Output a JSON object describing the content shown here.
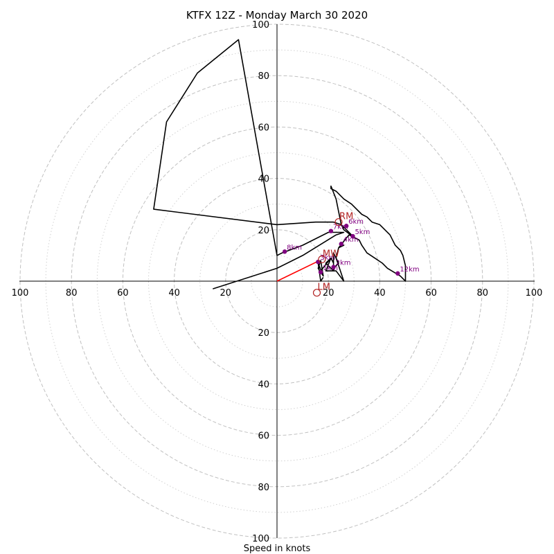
{
  "chart_data": {
    "type": "line",
    "title": "KTFX 12Z - Monday March 30 2020",
    "xlabel": "Speed in knots",
    "ylabel": "",
    "xlim": [
      -100,
      100
    ],
    "ylim": [
      -100,
      100
    ],
    "x_tick_labels": [
      "100",
      "80",
      "60",
      "40",
      "20",
      "20",
      "40",
      "60",
      "80",
      "100"
    ],
    "y_tick_labels": [
      "100",
      "80",
      "60",
      "40",
      "20",
      "20",
      "40",
      "60",
      "80",
      "100"
    ],
    "grid": true,
    "rings_dashed": [
      20,
      40,
      60,
      80,
      100
    ],
    "rings_dotted": [
      10,
      30,
      50,
      70,
      90
    ],
    "colors": {
      "hodograph": "#000000",
      "height_points": "#800080",
      "motion": "#b22222",
      "mean_wind_vector": "#ff0000",
      "grid": "#c0c0c0"
    },
    "series": [
      {
        "color": "#000000",
        "points": [
          [
            18,
            1.5
          ],
          [
            17,
            0
          ],
          [
            16,
            7
          ],
          [
            18,
            2
          ],
          [
            16,
            5
          ],
          [
            17,
            8
          ],
          [
            18,
            2
          ],
          [
            17,
            4
          ],
          [
            21,
            9
          ],
          [
            19,
            4
          ],
          [
            22,
            4
          ],
          [
            19,
            7
          ],
          [
            21,
            9
          ],
          [
            22,
            7
          ],
          [
            22,
            5
          ],
          [
            24,
            7
          ],
          [
            22,
            11
          ],
          [
            22,
            4
          ],
          [
            23,
            4
          ],
          [
            26,
            0
          ],
          [
            23,
            9
          ],
          [
            24,
            13
          ],
          [
            26,
            14
          ],
          [
            24,
            13
          ],
          [
            28,
            18
          ],
          [
            30,
            17
          ],
          [
            26,
            20
          ],
          [
            25,
            22
          ],
          [
            24,
            27
          ],
          [
            23,
            32
          ],
          [
            21,
            37
          ],
          [
            21,
            36
          ],
          [
            23,
            35
          ],
          [
            26,
            32
          ],
          [
            29,
            30
          ],
          [
            33,
            26
          ],
          [
            35,
            25
          ],
          [
            37,
            23
          ],
          [
            40,
            22
          ],
          [
            42,
            20
          ],
          [
            44,
            18
          ],
          [
            46,
            14
          ],
          [
            48,
            12
          ],
          [
            49,
            10
          ],
          [
            50,
            6
          ],
          [
            50,
            4
          ],
          [
            50,
            0
          ],
          [
            48,
            2
          ],
          [
            43,
            5
          ],
          [
            41,
            7
          ],
          [
            38,
            9
          ],
          [
            35,
            11
          ],
          [
            33,
            14
          ],
          [
            32,
            16
          ],
          [
            30,
            17
          ],
          [
            28,
            19
          ],
          [
            25,
            22
          ],
          [
            22,
            23
          ],
          [
            15,
            23
          ],
          [
            0,
            22
          ],
          [
            -48,
            28
          ],
          [
            -43,
            62
          ],
          [
            -31,
            81
          ],
          [
            -15,
            94
          ],
          [
            0,
            10
          ],
          [
            2,
            11
          ],
          [
            10,
            14
          ],
          [
            20,
            19
          ],
          [
            26,
            19
          ],
          [
            23,
            18
          ],
          [
            10,
            10
          ],
          [
            0,
            5
          ],
          [
            -25,
            -3
          ]
        ]
      }
    ],
    "height_markers": [
      {
        "label": "1km",
        "u": 17,
        "v": 3.5
      },
      {
        "label": "2km",
        "u": 22,
        "v": 5.5
      },
      {
        "label": "3km",
        "u": 16,
        "v": 7.5
      },
      {
        "label": "4km",
        "u": 25,
        "v": 14.5
      },
      {
        "label": "5km",
        "u": 29.5,
        "v": 17.5
      },
      {
        "label": "6km",
        "u": 27,
        "v": 21.5
      },
      {
        "label": "7km",
        "u": 21,
        "v": 19.5
      },
      {
        "label": "8km",
        "u": 3,
        "v": 11.5
      },
      {
        "label": "12km",
        "u": 47,
        "v": 3
      }
    ],
    "motion_markers": [
      {
        "label": "RM",
        "u": 24,
        "v": 23
      },
      {
        "label": "MW",
        "u": 17.5,
        "v": 8.5
      },
      {
        "label": "LM",
        "u": 15.5,
        "v": -4.5
      }
    ],
    "mean_wind_vector": {
      "u": 16.5,
      "v": 8
    }
  }
}
